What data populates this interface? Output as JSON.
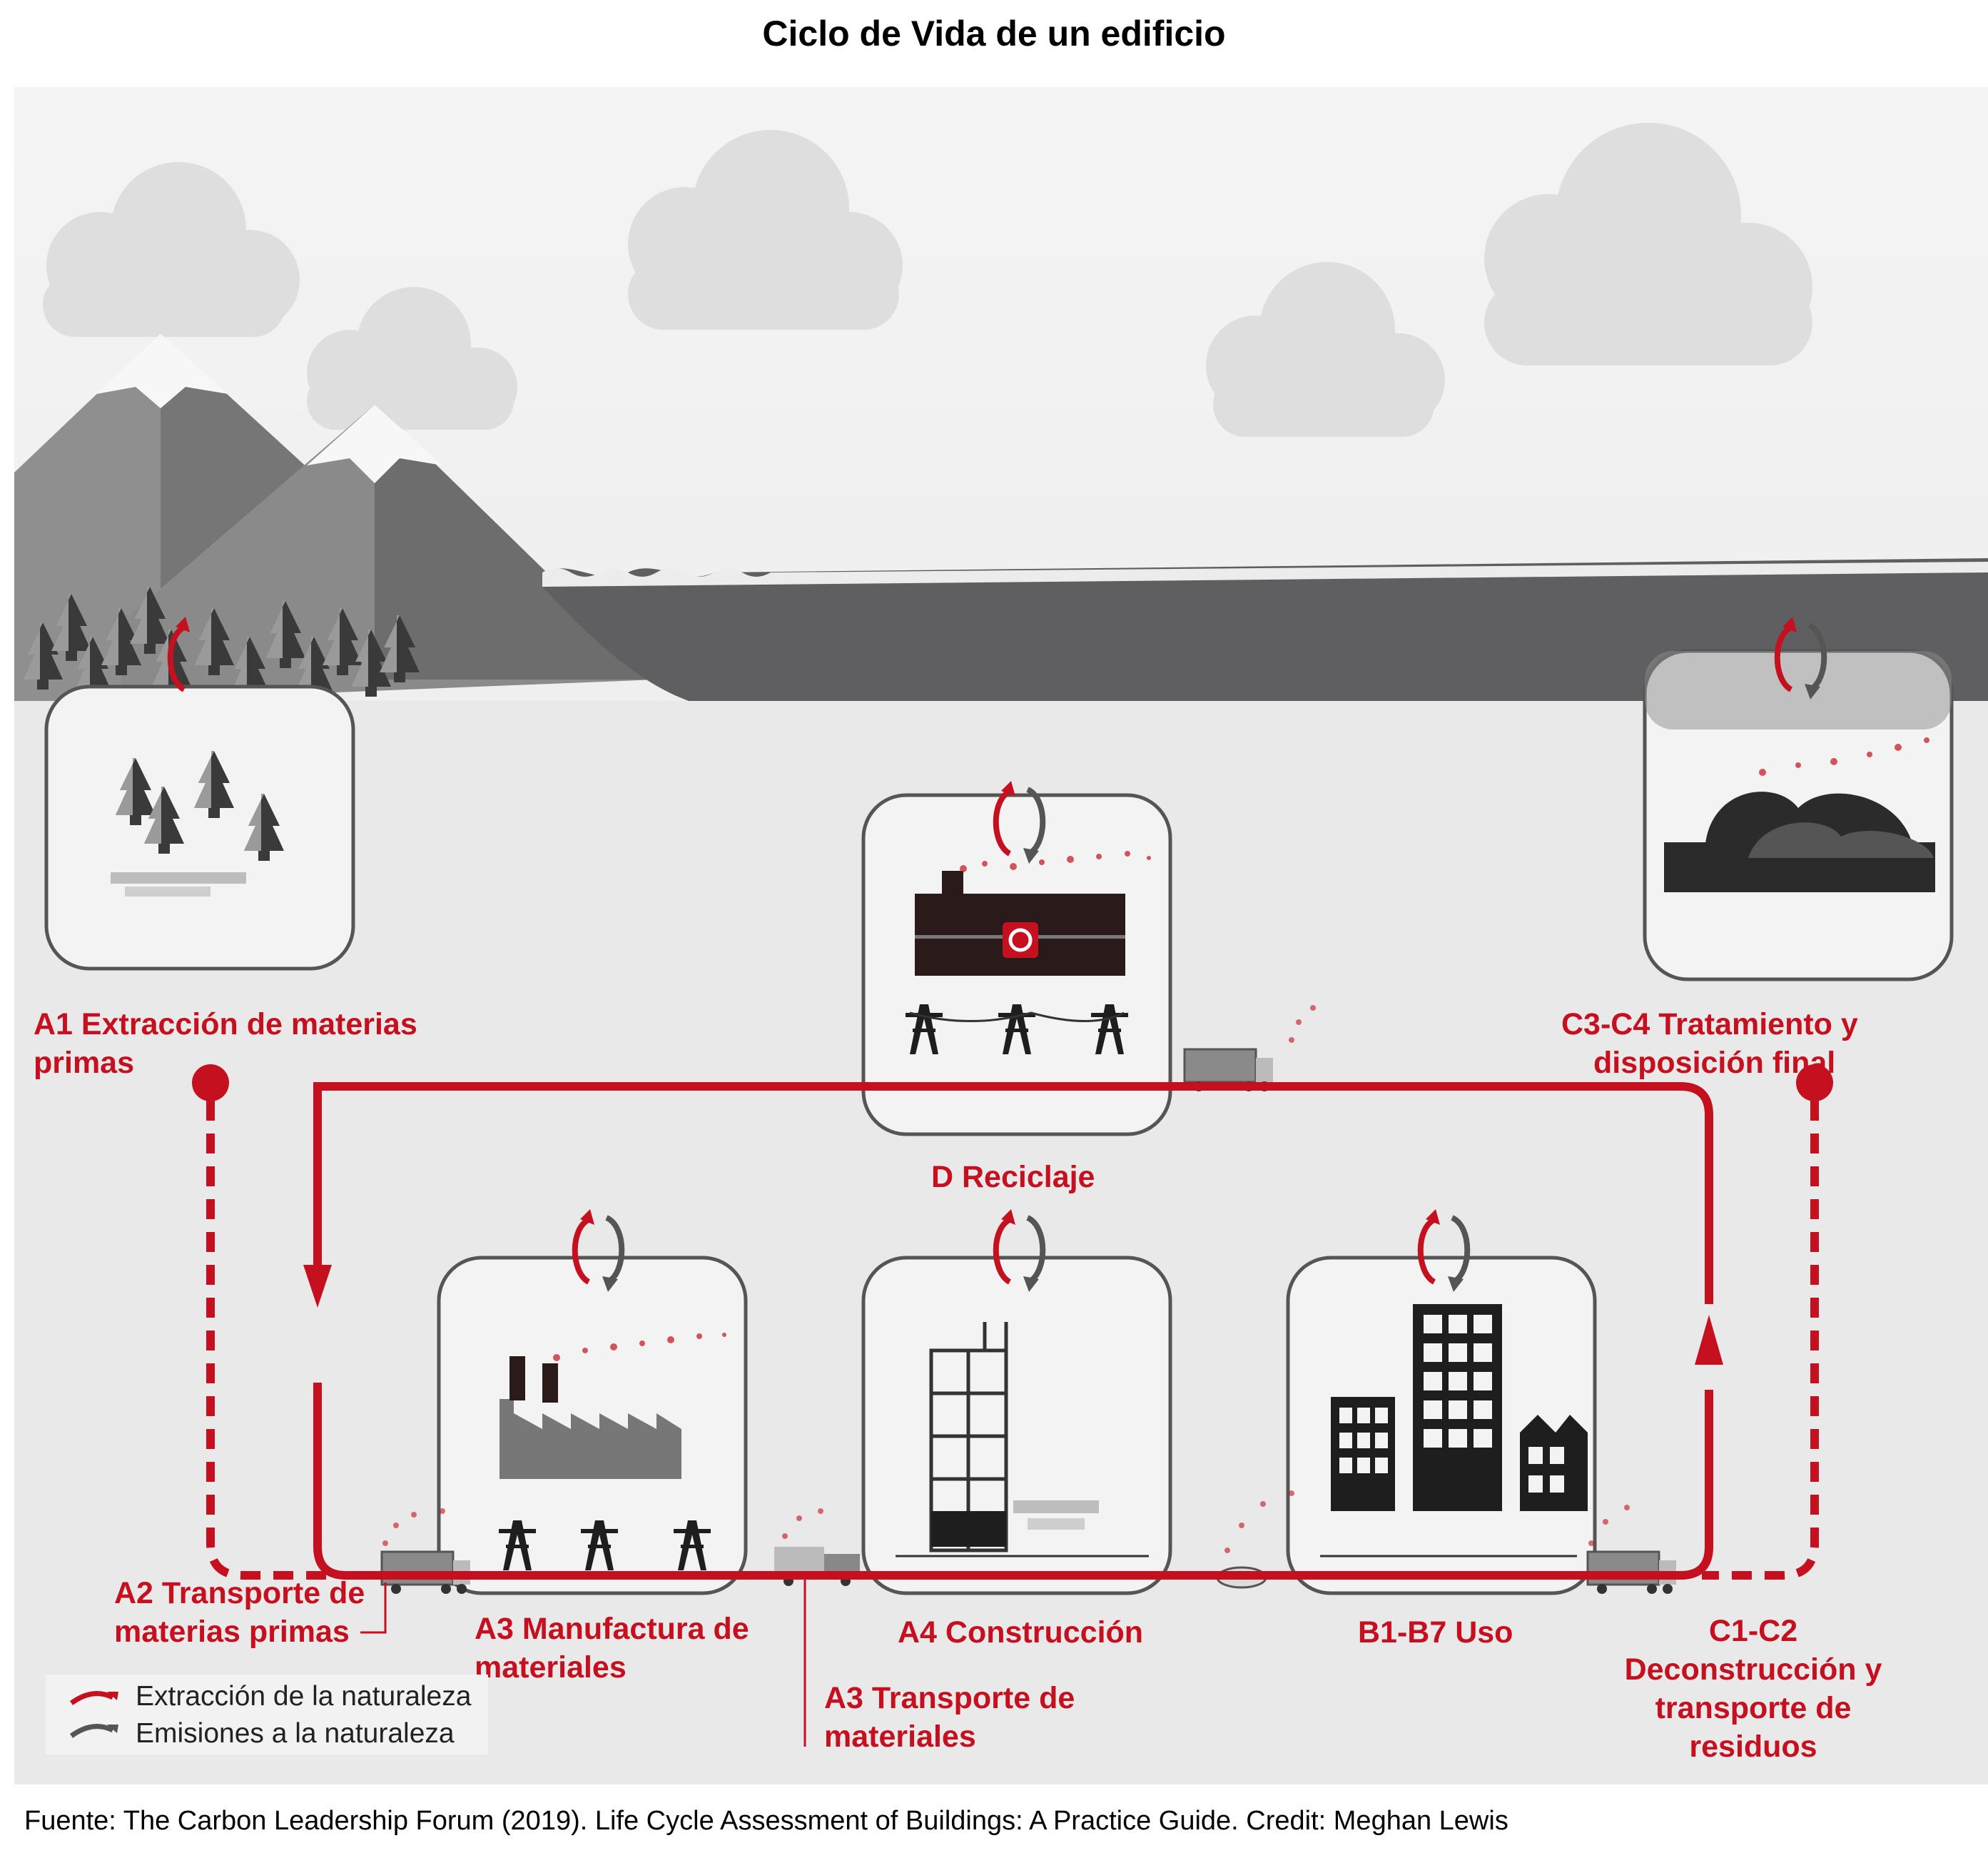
{
  "title": "Ciclo de Vida de un edificio",
  "colors": {
    "accent_red": "#c4101f",
    "emission_gray": "#555555",
    "sky": "#ececec",
    "water": "#5f5f61"
  },
  "stages": {
    "a1": [
      "A1 Extracción de materias",
      "primas"
    ],
    "c3c4": [
      "C3-C4 Tratamiento y",
      "disposición final"
    ],
    "d": [
      "D Reciclaje"
    ],
    "a2": [
      "A2 Transporte de",
      "materias primas"
    ],
    "a3_manufactura": [
      "A3 Manufactura de",
      "materiales"
    ],
    "a4": [
      "A4 Construcción"
    ],
    "b": [
      "B1-B7 Uso"
    ],
    "c1c2": [
      "C1-C2",
      "Deconstrucción y",
      "transporte de",
      "residuos"
    ],
    "a3_transporte": [
      "A3 Transporte de",
      "materiales"
    ]
  },
  "legend": {
    "extraction": "Extracción de la naturaleza",
    "emission": "Emisiones a la naturaleza",
    "extraction_icon": "red-arrow-icon",
    "emission_icon": "gray-arrow-icon"
  },
  "footer": "Fuente: The Carbon Leadership Forum (2019). Life Cycle Assessment of Buildings: A Practice Guide. Credit: Meghan Lewis"
}
